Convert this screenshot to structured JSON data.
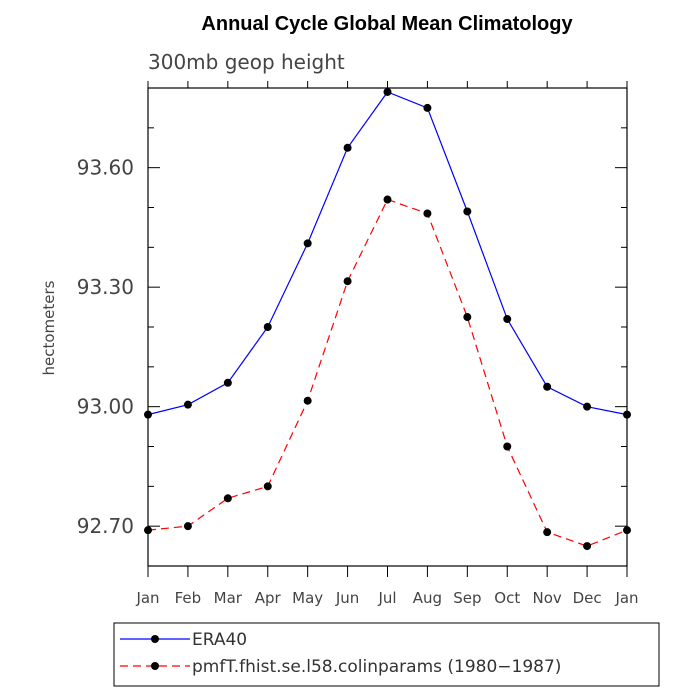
{
  "chart_data": {
    "type": "line",
    "title": "Annual Cycle Global Mean Climatology",
    "subtitle": "300mb geop height",
    "ylabel": "hectometers",
    "xlabel": "",
    "categories": [
      "Jan",
      "Feb",
      "Mar",
      "Apr",
      "May",
      "Jun",
      "Jul",
      "Aug",
      "Sep",
      "Oct",
      "Nov",
      "Dec",
      "Jan"
    ],
    "ylim": [
      92.6,
      93.8
    ],
    "yticks": [
      92.7,
      93.0,
      93.3,
      93.6
    ],
    "ytick_labels": [
      "92.70",
      "93.00",
      "93.30",
      "93.60"
    ],
    "grid": false,
    "legend_position": "bottom",
    "series": [
      {
        "name": "ERA40",
        "color": "#0000ff",
        "style": "solid",
        "marker": "circle",
        "values": [
          92.98,
          93.005,
          93.06,
          93.2,
          93.41,
          93.65,
          93.79,
          93.75,
          93.49,
          93.22,
          93.05,
          93.0,
          92.98
        ]
      },
      {
        "name": "pmfT.fhist.se.l58.colinparams (1980−1987)",
        "color": "#ff0000",
        "style": "dashed",
        "marker": "circle",
        "values": [
          92.69,
          92.7,
          92.77,
          92.8,
          93.015,
          93.315,
          93.52,
          93.485,
          93.225,
          92.9,
          92.685,
          92.65,
          92.69
        ]
      }
    ]
  }
}
